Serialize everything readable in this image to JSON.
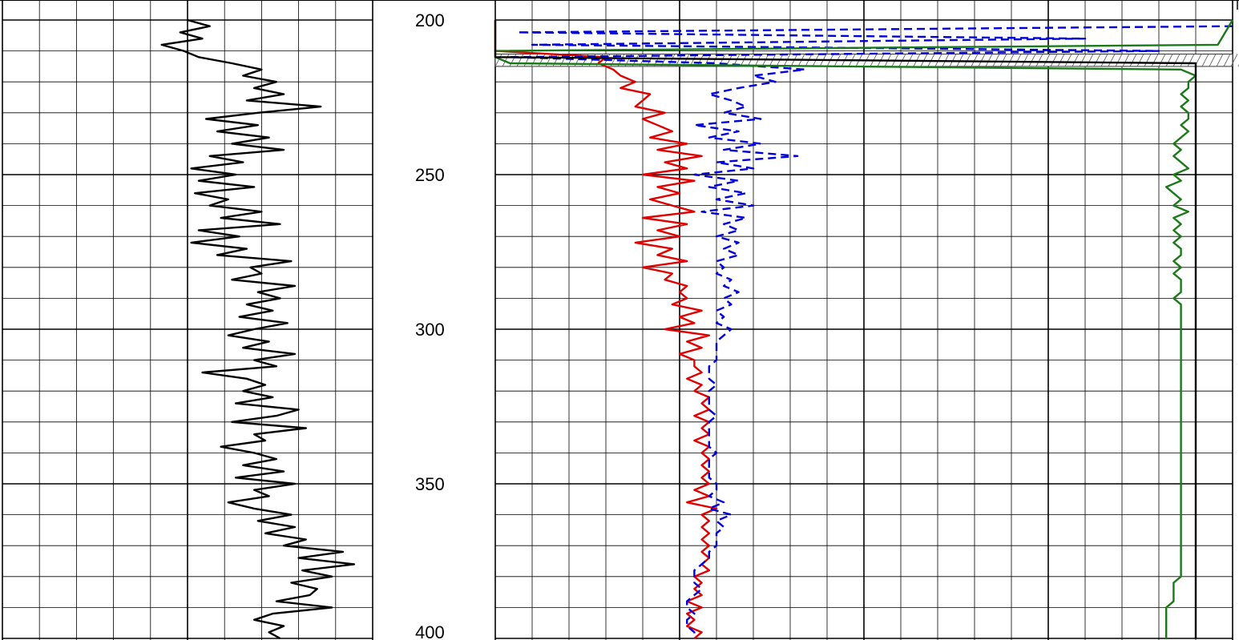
{
  "chart_data": {
    "type": "line",
    "depth_unit_labels": [
      "200",
      "250",
      "300",
      "350",
      "400"
    ],
    "depth_range": [
      200,
      400
    ],
    "grid": true,
    "colors": {
      "gr": "#000000",
      "res_deep": "#e00000",
      "res_shallow": "#0000dd",
      "green": "#1a7a1a",
      "casing": "#000000",
      "hatch": "#555555"
    },
    "tracks": [
      {
        "name": "",
        "xlim": [
          0,
          10
        ],
        "series": [
          {
            "name": "",
            "color": "#000000",
            "style": "solid",
            "depth": [
              200,
              202,
              204,
              206,
              208,
              210,
              212,
              214,
              216,
              218,
              220,
              222,
              224,
              226,
              228,
              230,
              232,
              234,
              236,
              238,
              240,
              242,
              244,
              246,
              248,
              250,
              252,
              254,
              256,
              258,
              260,
              262,
              264,
              266,
              268,
              270,
              272,
              274,
              276,
              278,
              280,
              282,
              284,
              286,
              288,
              290,
              292,
              294,
              296,
              298,
              300,
              302,
              304,
              306,
              308,
              310,
              312,
              314,
              316,
              318,
              320,
              322,
              324,
              326,
              328,
              330,
              332,
              334,
              336,
              338,
              340,
              342,
              344,
              346,
              348,
              350,
              352,
              354,
              356,
              358,
              360,
              362,
              364,
              366,
              368,
              370,
              372,
              374,
              376,
              378,
              380,
              382,
              384,
              386,
              388,
              390,
              392,
              394,
              396,
              398,
              400
            ],
            "values": [
              5.0,
              5.6,
              4.8,
              5.4,
              4.3,
              4.9,
              5.3,
              6.2,
              7.0,
              6.5,
              7.4,
              6.8,
              7.6,
              6.6,
              8.6,
              6.9,
              5.5,
              6.9,
              5.8,
              7.2,
              6.2,
              7.6,
              5.6,
              6.5,
              5.1,
              6.3,
              5.3,
              6.8,
              5.2,
              6.1,
              5.6,
              7.0,
              5.9,
              7.5,
              5.3,
              6.4,
              5.1,
              6.6,
              5.8,
              7.8,
              6.7,
              7.0,
              6.2,
              7.9,
              6.9,
              7.5,
              6.6,
              7.3,
              6.4,
              7.7,
              6.8,
              6.1,
              7.2,
              6.5,
              7.9,
              6.8,
              7.4,
              5.4,
              6.6,
              7.1,
              6.5,
              7.3,
              6.3,
              8.0,
              7.4,
              6.2,
              8.2,
              6.8,
              7.1,
              5.9,
              6.8,
              7.4,
              6.5,
              7.6,
              6.3,
              7.9,
              6.8,
              7.2,
              6.1,
              6.8,
              7.8,
              6.9,
              7.9,
              7.1,
              8.2,
              7.6,
              9.2,
              8.0,
              9.5,
              8.1,
              8.9,
              7.8,
              8.5,
              8.3,
              7.4,
              8.9,
              7.3,
              6.8,
              7.6,
              7.2,
              7.5
            ]
          }
        ]
      },
      {
        "name": "",
        "xlim": [
          0,
          100
        ],
        "series": [
          {
            "name": "",
            "color": "#e00000",
            "style": "solid",
            "depth": [
              200,
              210,
              212,
              214,
              216,
              218,
              220,
              222,
              224,
              226,
              228,
              230,
              232,
              234,
              236,
              238,
              240,
              242,
              244,
              246,
              248,
              250,
              252,
              254,
              256,
              258,
              260,
              262,
              264,
              266,
              268,
              270,
              272,
              274,
              276,
              278,
              280,
              282,
              284,
              286,
              288,
              290,
              292,
              294,
              296,
              298,
              300,
              302,
              304,
              306,
              308,
              310,
              312,
              314,
              316,
              318,
              320,
              322,
              324,
              326,
              328,
              330,
              332,
              334,
              336,
              338,
              340,
              342,
              344,
              346,
              348,
              350,
              352,
              354,
              356,
              358,
              360,
              362,
              364,
              366,
              368,
              370,
              372,
              374,
              376,
              378,
              380,
              382,
              384,
              386,
              388,
              390,
              392,
              394,
              396,
              398,
              400
            ],
            "values": [
              0,
              0,
              15,
              14,
              16,
              17,
              19,
              17,
              21,
              20,
              19,
              23,
              20,
              22,
              24,
              21,
              26,
              22,
              28,
              23,
              26,
              20,
              27,
              22,
              25,
              21,
              24,
              27,
              20,
              26,
              22,
              25,
              19,
              24,
              22,
              26,
              20,
              24,
              23,
              26,
              25,
              26,
              24,
              28,
              25,
              27,
              23,
              29,
              26,
              28,
              25,
              27,
              27,
              28,
              26,
              28,
              27,
              29,
              28,
              29,
              27,
              29,
              28,
              29,
              27,
              29,
              28,
              29,
              28,
              29,
              28,
              29,
              27,
              29,
              26,
              30,
              28,
              29,
              28,
              29,
              28,
              29,
              28,
              29,
              28,
              29,
              27,
              28,
              27,
              28,
              26,
              28,
              26,
              27,
              26,
              28,
              27
            ]
          },
          {
            "name": "",
            "color": "#0000dd",
            "style": "dashed",
            "depth": [
              202,
              204,
              206,
              208,
              210,
              212,
              214,
              216,
              218,
              220,
              222,
              224,
              226,
              228,
              230,
              232,
              234,
              236,
              238,
              240,
              242,
              244,
              246,
              248,
              250,
              252,
              254,
              256,
              258,
              260,
              262,
              264,
              266,
              268,
              270,
              272,
              274,
              276,
              278,
              280,
              282,
              284,
              286,
              288,
              290,
              292,
              294,
              296,
              298,
              300,
              302,
              304,
              306,
              308,
              310,
              312,
              314,
              316,
              318,
              320,
              322,
              324,
              326,
              328,
              330,
              332,
              334,
              336,
              338,
              340,
              342,
              344,
              346,
              348,
              350,
              352,
              354,
              356,
              358,
              360,
              362,
              364,
              366,
              368,
              370,
              372,
              374,
              376,
              378,
              380,
              382,
              384,
              386,
              388,
              390,
              392,
              394,
              396,
              398,
              400
            ],
            "values": [
              100,
              3,
              80,
              5,
              90,
              2,
              30,
              42,
              35,
              38,
              33,
              29,
              32,
              34,
              31,
              36,
              27,
              33,
              29,
              36,
              31,
              41,
              30,
              35,
              27,
              33,
              29,
              34,
              30,
              35,
              28,
              34,
              31,
              33,
              30,
              33,
              31,
              33,
              30,
              31,
              30,
              32,
              31,
              33,
              31,
              32,
              30,
              31,
              30,
              32,
              31,
              30,
              30,
              30,
              30,
              29,
              29,
              29,
              30,
              29,
              29,
              29,
              29,
              30,
              29,
              29,
              29,
              29,
              29,
              30,
              29,
              29,
              29,
              29,
              30,
              30,
              29,
              31,
              29,
              32,
              30,
              31,
              30,
              30,
              30,
              29,
              29,
              28,
              27,
              27,
              27,
              28,
              27,
              26,
              26,
              27,
              26,
              26,
              27,
              27
            ]
          },
          {
            "name": "",
            "color": "#1a7a1a",
            "style": "solid",
            "depth": [
              200,
              208,
              210,
              212,
              214,
              216,
              218,
              220,
              222,
              224,
              226,
              228,
              230,
              232,
              234,
              236,
              238,
              240,
              242,
              244,
              246,
              248,
              250,
              252,
              254,
              256,
              258,
              260,
              262,
              264,
              266,
              268,
              270,
              272,
              274,
              276,
              278,
              280,
              282,
              284,
              286,
              288,
              290,
              292,
              294,
              296,
              298,
              300,
              302,
              304,
              306,
              308,
              310,
              312,
              314,
              316,
              318,
              320,
              322,
              324,
              326,
              328,
              330,
              332,
              334,
              336,
              338,
              340,
              342,
              344,
              346,
              348,
              350,
              352,
              354,
              356,
              358,
              360,
              362,
              364,
              366,
              368,
              370,
              372,
              374,
              376,
              378,
              380,
              382,
              384,
              386,
              388,
              390,
              392,
              394,
              396,
              398,
              400
            ],
            "values": [
              100,
              98,
              0,
              0,
              2,
              93,
              95,
              94,
              94,
              93,
              94,
              93,
              94,
              94,
              93,
              94,
              93,
              92,
              93,
              92,
              93,
              94,
              92,
              93,
              91,
              92,
              93,
              92,
              94,
              92,
              93,
              92,
              93,
              92,
              93,
              93,
              92,
              93,
              92,
              93,
              93,
              93,
              92,
              93,
              93,
              93,
              93,
              93,
              93,
              93,
              93,
              93,
              93,
              93,
              93,
              93,
              93,
              93,
              93,
              93,
              93,
              93,
              93,
              93,
              93,
              93,
              93,
              93,
              93,
              93,
              93,
              93,
              93,
              93,
              93,
              93,
              93,
              93,
              93,
              93,
              93,
              93,
              93,
              93,
              93,
              93,
              93,
              93,
              92,
              92,
              92,
              92,
              91,
              91,
              91,
              91,
              91,
              91,
              91,
              91
            ]
          },
          {
            "name": "",
            "color": "#000000",
            "style": "solid",
            "depth": [
              200,
              212,
              214,
              216,
              218,
              220,
              222,
              224,
              226,
              228,
              230,
              232,
              234,
              236,
              238,
              240,
              242,
              244,
              246,
              248,
              250,
              252,
              254,
              256,
              258,
              260,
              262,
              264,
              266,
              268,
              270,
              272,
              274,
              276,
              278,
              280,
              282,
              284,
              286,
              288,
              290,
              292,
              294,
              296,
              298,
              300,
              302,
              304,
              306,
              308,
              310,
              312,
              314,
              316,
              318,
              320,
              322,
              324,
              326,
              328,
              330,
              332,
              334,
              336,
              338,
              340,
              342,
              344,
              346,
              348,
              350,
              352,
              354,
              356,
              358,
              360,
              362,
              364,
              366,
              368,
              370,
              372,
              374,
              376,
              378,
              380,
              382,
              384,
              386,
              388,
              390,
              392,
              394,
              396,
              398,
              400
            ],
            "values": [
              0,
              0,
              95,
              95,
              95,
              95,
              95,
              95,
              95,
              95,
              95,
              95,
              95,
              95,
              95,
              95,
              95,
              95,
              95,
              95,
              95,
              95,
              95,
              95,
              95,
              95,
              95,
              95,
              95,
              95,
              95,
              95,
              95,
              95,
              95,
              95,
              95,
              95,
              95,
              95,
              95,
              95,
              95,
              95,
              95,
              95,
              95,
              95,
              95,
              95,
              95,
              95,
              95,
              95,
              95,
              95,
              95,
              95,
              95,
              95,
              95,
              95,
              95,
              95,
              95,
              95,
              95,
              95,
              95,
              95,
              95,
              95,
              95,
              95,
              95,
              95,
              95,
              95,
              95,
              95,
              95,
              95,
              95,
              95,
              95,
              95,
              95,
              95,
              95,
              95,
              95,
              95,
              95,
              95,
              95,
              95
            ]
          }
        ],
        "hatched_interval": [
          211,
          215
        ]
      }
    ]
  }
}
